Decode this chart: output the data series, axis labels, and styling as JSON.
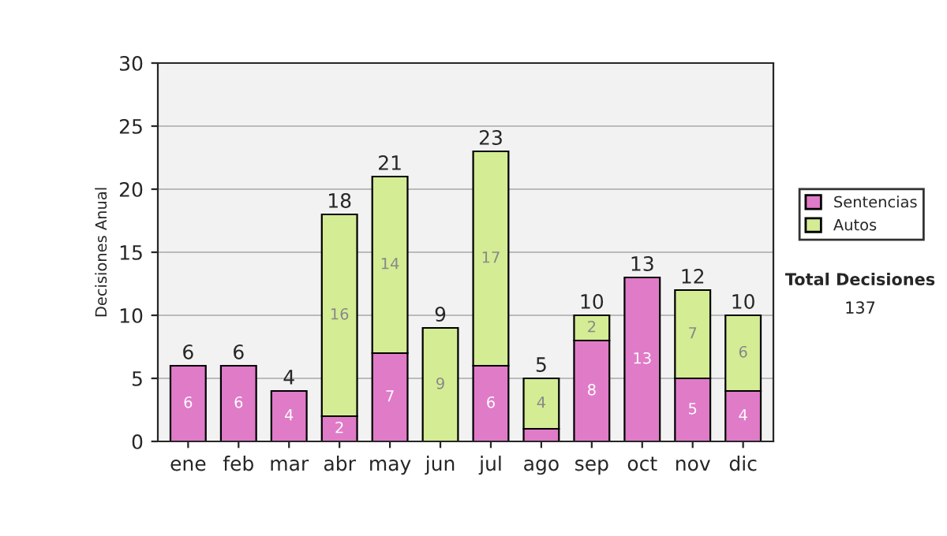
{
  "chart_data": {
    "type": "bar",
    "stacked": true,
    "ylabel": "Decisiones Anual",
    "categories": [
      "ene",
      "feb",
      "mar",
      "abr",
      "may",
      "jun",
      "jul",
      "ago",
      "sep",
      "oct",
      "nov",
      "dic"
    ],
    "series": [
      {
        "name": "Sentencias",
        "color": "#e07bc8",
        "values": [
          6,
          6,
          4,
          2,
          7,
          0,
          6,
          1,
          8,
          13,
          5,
          4
        ],
        "value_labels": [
          "6",
          "6",
          "4",
          "2",
          "7",
          null,
          "6",
          null,
          "8",
          "13",
          "5",
          "4"
        ]
      },
      {
        "name": "Autos",
        "color": "#d4ec94",
        "values": [
          0,
          0,
          0,
          16,
          14,
          9,
          17,
          4,
          2,
          0,
          7,
          6
        ],
        "value_labels": [
          null,
          null,
          null,
          "16",
          "14",
          "9",
          "17",
          "4",
          "2",
          null,
          "7",
          "6"
        ]
      }
    ],
    "totals": [
      "6",
      "6",
      "4",
      "18",
      "21",
      "9",
      "23",
      "5",
      "10",
      "13",
      "12",
      "10"
    ],
    "ylim": [
      0,
      30
    ],
    "yticks": [
      0,
      5,
      10,
      15,
      20,
      25,
      30
    ],
    "grid": "y",
    "legend": "right",
    "annotations": [
      "Total Decisiones",
      "137"
    ]
  }
}
